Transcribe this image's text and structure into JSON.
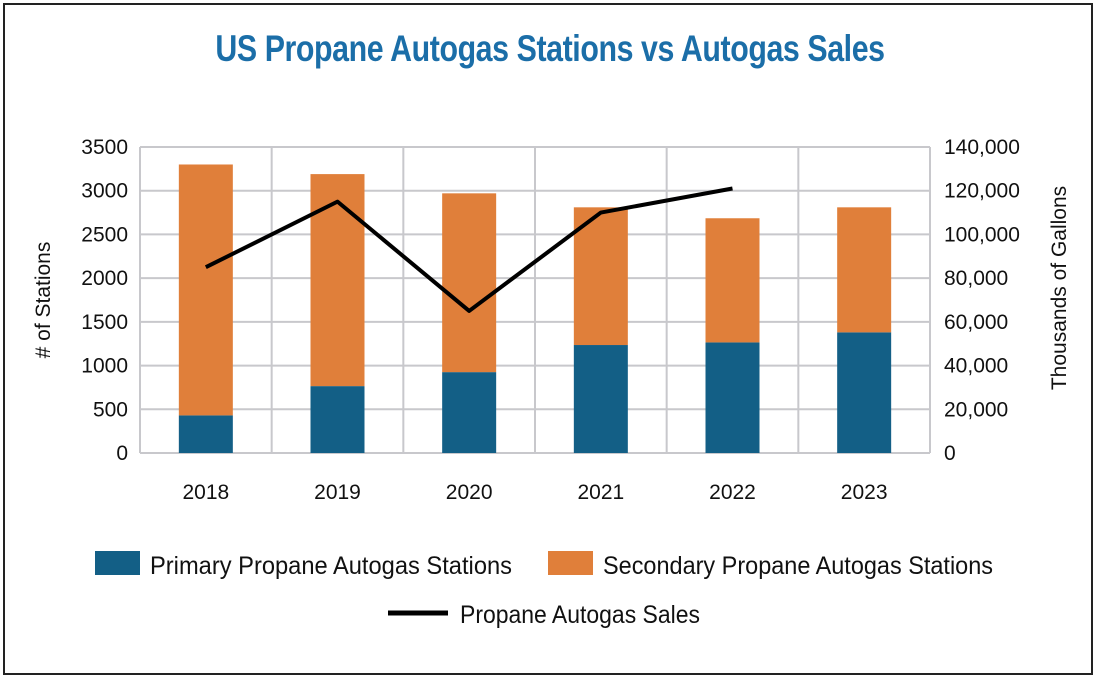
{
  "chart_data": {
    "type": "bar+line",
    "title": "US Propane Autogas Stations vs Autogas Sales",
    "categories": [
      "2018",
      "2019",
      "2020",
      "2021",
      "2022",
      "2023"
    ],
    "ylabel": "# of Stations",
    "y2label": "Thousands of Gallons",
    "ylim": [
      0,
      3500
    ],
    "y2lim": [
      0,
      140000
    ],
    "yticks": [
      "0",
      "500",
      "1000",
      "1500",
      "2000",
      "2500",
      "3000",
      "3500"
    ],
    "y2ticks": [
      "0",
      "20,000",
      "40,000",
      "60,000",
      "80,000",
      "100,000",
      "120,000",
      "140,000"
    ],
    "grid": true,
    "legend_position": "bottom",
    "series": [
      {
        "name": "Primary Propane Autogas Stations",
        "type": "stacked-bar",
        "axis": "left",
        "color": "#135f86",
        "values": [
          430,
          765,
          925,
          1235,
          1265,
          1380
        ]
      },
      {
        "name": "Secondary Propane Autogas Stations",
        "type": "stacked-bar",
        "axis": "left",
        "color": "#e07f3a",
        "values": [
          2870,
          2425,
          2045,
          1575,
          1420,
          1430
        ]
      },
      {
        "name": "Propane Autogas Sales",
        "type": "line",
        "axis": "right",
        "color": "#000000",
        "values": [
          85000,
          115000,
          65000,
          110000,
          121000,
          null
        ]
      }
    ]
  }
}
